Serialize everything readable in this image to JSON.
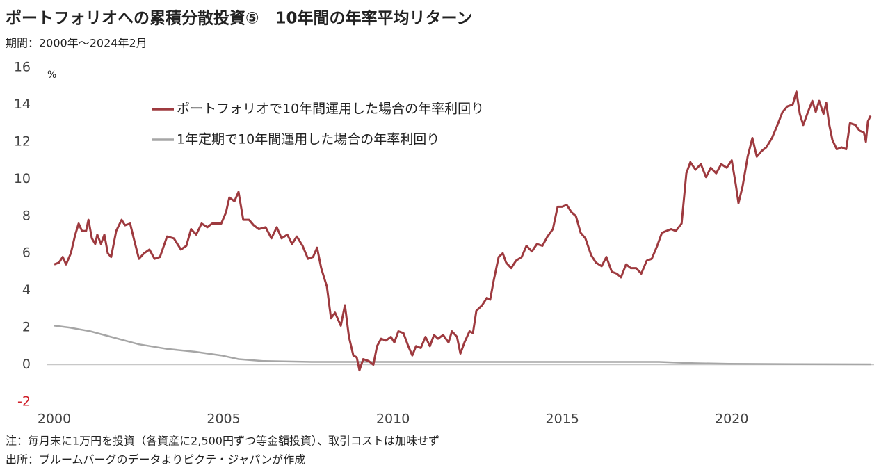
{
  "chart_data": {
    "type": "line",
    "title": "ポートフォリオへの累積分散投資⑤　10年間の年率平均リターン",
    "subtitle": "期間：2000年～2024年2月",
    "y_unit": "%",
    "notes": [
      "注：毎月末に1万円を投資（各資産に2,500円ずつ等金額投資）、取引コストは加味せず",
      "出所：ブルームバーグのデータよりピクテ・ジャパンが作成"
    ],
    "xlim": [
      2000,
      2024.1
    ],
    "xticks": [
      2000,
      2005,
      2010,
      2015,
      2020
    ],
    "ylim": [
      -2,
      16
    ],
    "yticks": [
      -2,
      0,
      2,
      4,
      6,
      8,
      10,
      12,
      14,
      16
    ],
    "series": [
      {
        "name": "ポートフォリオで10年間運用した場合の年率利回り",
        "color": "#9e3a3f",
        "x": [
          2000.0,
          2000.14,
          2000.25,
          2000.35,
          2000.49,
          2000.62,
          2000.72,
          2000.82,
          2000.94,
          2001.01,
          2001.11,
          2001.21,
          2001.27,
          2001.38,
          2001.48,
          2001.58,
          2001.68,
          2001.83,
          2001.99,
          2002.09,
          2002.24,
          2002.36,
          2002.5,
          2002.65,
          2002.81,
          2002.96,
          2003.12,
          2003.33,
          2003.53,
          2003.74,
          2003.9,
          2004.04,
          2004.19,
          2004.35,
          2004.52,
          2004.66,
          2004.93,
          2005.07,
          2005.17,
          2005.32,
          2005.44,
          2005.58,
          2005.75,
          2005.89,
          2006.04,
          2006.24,
          2006.41,
          2006.57,
          2006.71,
          2006.88,
          2007.02,
          2007.16,
          2007.33,
          2007.49,
          2007.64,
          2007.76,
          2007.88,
          2008.05,
          2008.17,
          2008.29,
          2008.46,
          2008.58,
          2008.7,
          2008.83,
          2008.93,
          2009.01,
          2009.12,
          2009.28,
          2009.42,
          2009.53,
          2009.65,
          2009.79,
          2009.94,
          2010.04,
          2010.16,
          2010.31,
          2010.45,
          2010.57,
          2010.68,
          2010.82,
          2010.96,
          2011.09,
          2011.21,
          2011.33,
          2011.48,
          2011.64,
          2011.74,
          2011.89,
          2011.99,
          2012.11,
          2012.26,
          2012.36,
          2012.46,
          2012.63,
          2012.77,
          2012.87,
          2012.97,
          2013.12,
          2013.24,
          2013.34,
          2013.49,
          2013.63,
          2013.8,
          2013.94,
          2014.1,
          2014.25,
          2014.41,
          2014.56,
          2014.72,
          2014.86,
          2014.99,
          2015.13,
          2015.27,
          2015.4,
          2015.54,
          2015.68,
          2015.85,
          2015.99,
          2016.16,
          2016.3,
          2016.46,
          2016.61,
          2016.73,
          2016.88,
          2017.02,
          2017.18,
          2017.33,
          2017.49,
          2017.64,
          2017.8,
          2017.94,
          2018.07,
          2018.21,
          2018.35,
          2018.52,
          2018.66,
          2018.78,
          2018.93,
          2019.09,
          2019.24,
          2019.38,
          2019.54,
          2019.69,
          2019.85,
          2020.0,
          2020.12,
          2020.2,
          2020.32,
          2020.47,
          2020.61,
          2020.74,
          2020.88,
          2021.02,
          2021.19,
          2021.35,
          2021.5,
          2021.64,
          2021.8,
          2021.91,
          2022.01,
          2022.11,
          2022.25,
          2022.38,
          2022.48,
          2022.58,
          2022.71,
          2022.79,
          2022.87,
          2022.97,
          2023.1,
          2023.24,
          2023.38,
          2023.49,
          2023.65,
          2023.77,
          2023.9,
          2023.96,
          2024.02,
          2024.1
        ],
        "values": [
          5.4,
          5.5,
          5.8,
          5.4,
          6.0,
          7.0,
          7.6,
          7.2,
          7.2,
          7.8,
          6.8,
          6.5,
          7.0,
          6.5,
          7.0,
          6.0,
          5.8,
          7.2,
          7.8,
          7.5,
          7.6,
          6.7,
          5.7,
          6.0,
          6.2,
          5.7,
          5.8,
          6.9,
          6.8,
          6.2,
          6.4,
          7.3,
          7.0,
          7.6,
          7.4,
          7.6,
          7.6,
          8.2,
          9.0,
          8.8,
          9.3,
          7.8,
          7.8,
          7.5,
          7.3,
          7.4,
          6.8,
          7.4,
          6.8,
          7.0,
          6.5,
          6.9,
          6.4,
          5.7,
          5.8,
          6.3,
          5.2,
          4.2,
          2.5,
          2.8,
          2.1,
          3.2,
          1.5,
          0.5,
          0.4,
          -0.3,
          0.3,
          0.2,
          0.0,
          1.0,
          1.4,
          1.3,
          1.5,
          1.2,
          1.8,
          1.7,
          1.0,
          0.5,
          1.0,
          0.9,
          1.5,
          1.0,
          1.6,
          1.4,
          1.6,
          1.2,
          1.8,
          1.5,
          0.6,
          1.2,
          1.8,
          1.7,
          2.9,
          3.2,
          3.6,
          3.5,
          4.5,
          5.8,
          6.0,
          5.5,
          5.2,
          5.6,
          5.8,
          6.4,
          6.1,
          6.5,
          6.4,
          6.9,
          7.3,
          8.5,
          8.5,
          8.6,
          8.2,
          8.0,
          7.1,
          6.8,
          5.9,
          5.5,
          5.3,
          5.8,
          5.0,
          4.9,
          4.7,
          5.4,
          5.2,
          5.2,
          4.9,
          5.6,
          5.7,
          6.4,
          7.1,
          7.2,
          7.3,
          7.2,
          7.6,
          10.3,
          10.9,
          10.5,
          10.8,
          10.1,
          10.6,
          10.3,
          10.8,
          10.6,
          11.0,
          9.7,
          8.7,
          9.6,
          11.2,
          12.2,
          11.2,
          11.5,
          11.7,
          12.2,
          12.9,
          13.6,
          13.9,
          14.0,
          14.7,
          13.5,
          12.9,
          13.6,
          14.2,
          13.6,
          14.2,
          13.5,
          14.1,
          13.0,
          12.1,
          11.6,
          11.7,
          11.6,
          13.0,
          12.9,
          12.6,
          12.5,
          12.0,
          13.1,
          13.4
        ]
      },
      {
        "name": "1年定期で10年間運用した場合の年率利回り",
        "color": "#a6a6a6",
        "x": [
          2000.0,
          2000.45,
          2001.07,
          2001.68,
          2002.5,
          2003.33,
          2004.15,
          2004.93,
          2005.44,
          2006.16,
          2007.6,
          2009.03,
          2010.68,
          2012.73,
          2014.78,
          2017.86,
          2018.89,
          2019.91,
          2021.97,
          2024.1
        ],
        "values": [
          2.1,
          2.0,
          1.8,
          1.5,
          1.1,
          0.85,
          0.7,
          0.5,
          0.3,
          0.2,
          0.15,
          0.15,
          0.15,
          0.15,
          0.15,
          0.15,
          0.08,
          0.05,
          0.03,
          0.02
        ]
      }
    ]
  }
}
